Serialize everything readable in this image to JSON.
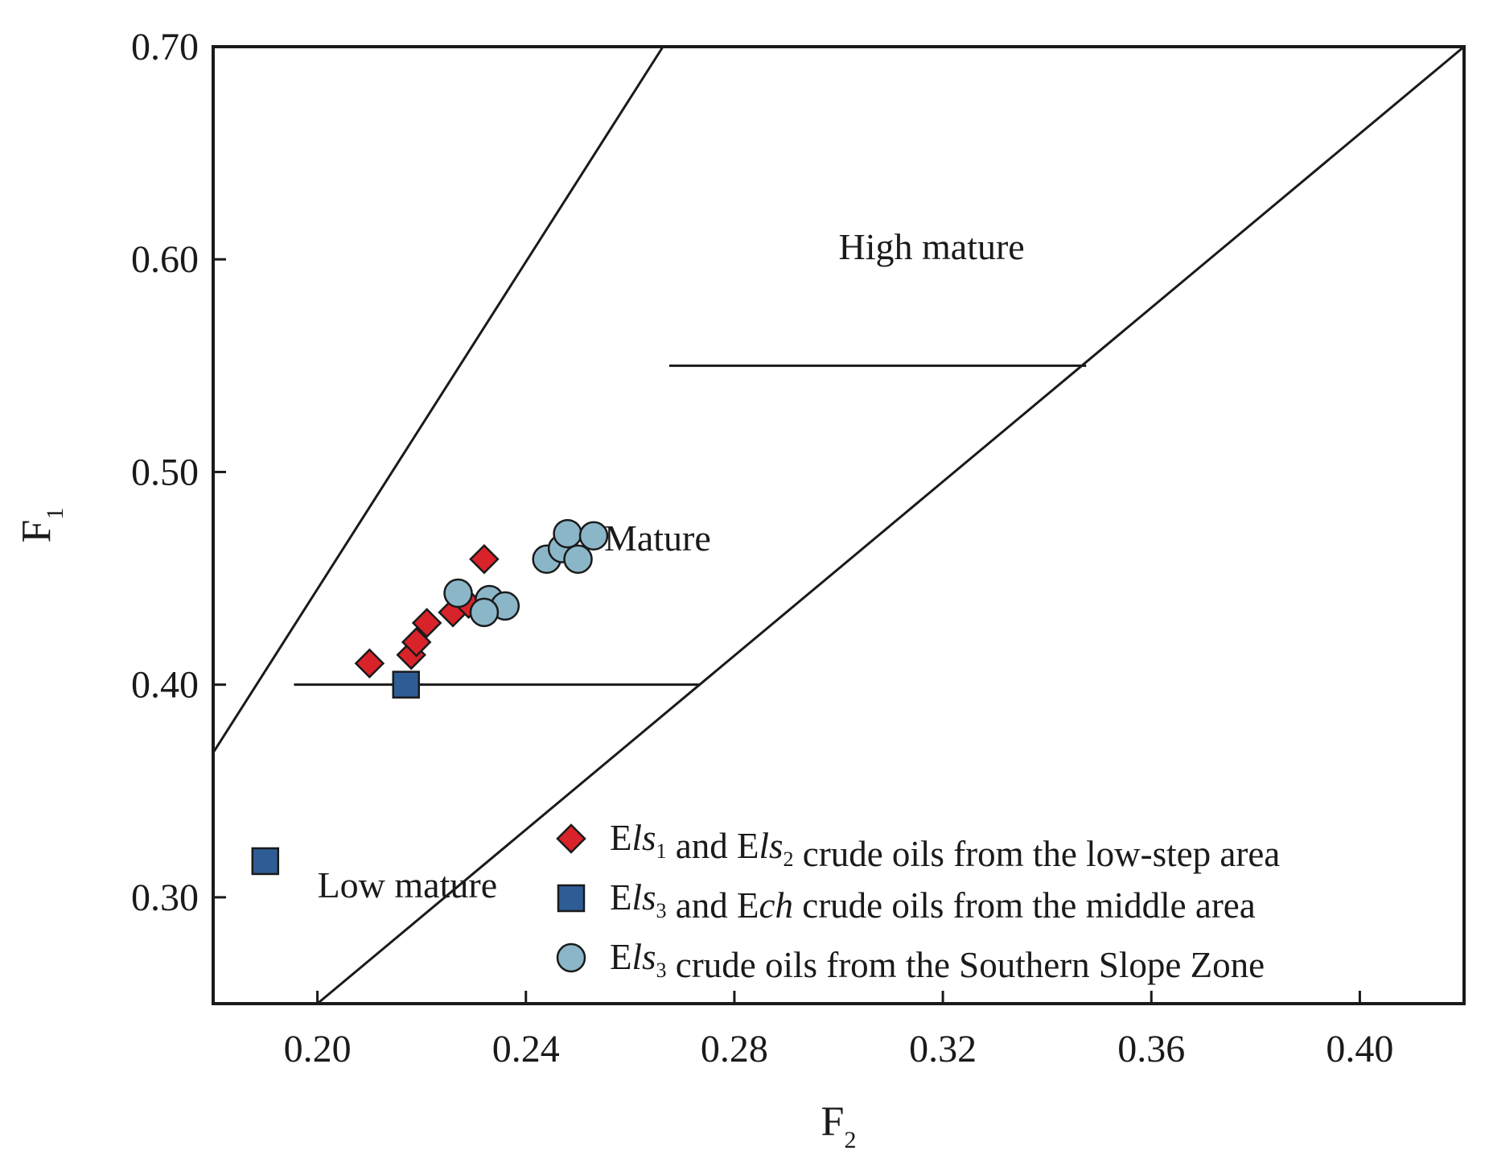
{
  "chart_data": {
    "type": "scatter",
    "xlabel": "F",
    "xlabel_sub": "2",
    "ylabel": "F",
    "ylabel_sub": "1",
    "xlim": [
      0.18,
      0.42
    ],
    "ylim": [
      0.25,
      0.7
    ],
    "xticks": [
      0.2,
      0.24,
      0.28,
      0.32,
      0.36,
      0.4
    ],
    "xtick_labels": [
      "0.20",
      "0.24",
      "0.28",
      "0.32",
      "0.36",
      "0.40"
    ],
    "yticks": [
      0.3,
      0.4,
      0.5,
      0.6,
      0.7
    ],
    "ytick_labels": [
      "0.30",
      "0.40",
      "0.50",
      "0.60",
      "0.70"
    ],
    "grid": false,
    "boundary_lines": [
      {
        "name": "upper-diagonal",
        "x": [
          0.18,
          0.2663
        ],
        "y": [
          0.368,
          0.7
        ]
      },
      {
        "name": "lower-diagonal",
        "x": [
          0.2,
          0.42
        ],
        "y": [
          0.25,
          0.7
        ]
      },
      {
        "name": "low-mature-boundary",
        "x": [
          0.1955,
          0.2735
        ],
        "y": [
          0.4,
          0.4
        ]
      },
      {
        "name": "high-mature-boundary",
        "x": [
          0.2675,
          0.3475
        ],
        "y": [
          0.55,
          0.55
        ]
      }
    ],
    "regions": [
      {
        "label": "High  mature",
        "x": 0.3,
        "y": 0.6
      },
      {
        "label": "Mature",
        "x": 0.255,
        "y": 0.463
      },
      {
        "label": "Low mature",
        "x": 0.2,
        "y": 0.3
      }
    ],
    "series": [
      {
        "name": "Els1 and Els2 crude oils from the low-step area",
        "marker": "diamond",
        "color": "#d8232a",
        "points": [
          [
            0.21,
            0.41
          ],
          [
            0.218,
            0.414
          ],
          [
            0.219,
            0.42
          ],
          [
            0.221,
            0.429
          ],
          [
            0.226,
            0.434
          ],
          [
            0.229,
            0.438
          ],
          [
            0.232,
            0.459
          ]
        ]
      },
      {
        "name": "Els3 and Ech crude oils from the middle area",
        "marker": "square",
        "color": "#2e5d96",
        "points": [
          [
            0.19,
            0.317
          ],
          [
            0.217,
            0.4
          ]
        ]
      },
      {
        "name": "Els3 crude oils from the Southern Slope Zone",
        "marker": "circle",
        "color": "#8ab6c8",
        "points": [
          [
            0.227,
            0.443
          ],
          [
            0.233,
            0.44
          ],
          [
            0.236,
            0.437
          ],
          [
            0.232,
            0.434
          ],
          [
            0.244,
            0.459
          ],
          [
            0.247,
            0.464
          ],
          [
            0.25,
            0.459
          ],
          [
            0.248,
            0.471
          ],
          [
            0.253,
            0.47
          ]
        ]
      }
    ],
    "legend": [
      {
        "marker": "diamond",
        "color": "#d8232a",
        "parts": [
          {
            "t": "E",
            "s": "n"
          },
          {
            "t": "ls",
            "s": "i"
          },
          {
            "t": "1",
            "s": "sub"
          },
          {
            "t": " and E",
            "s": "n"
          },
          {
            "t": "ls",
            "s": "i"
          },
          {
            "t": "2",
            "s": "sub"
          },
          {
            "t": " crude oils from the low-step area",
            "s": "n"
          }
        ]
      },
      {
        "marker": "square",
        "color": "#2e5d96",
        "parts": [
          {
            "t": "E",
            "s": "n"
          },
          {
            "t": "ls",
            "s": "i"
          },
          {
            "t": "3",
            "s": "sub"
          },
          {
            "t": " and E",
            "s": "n"
          },
          {
            "t": "ch",
            "s": "i"
          },
          {
            "t": " crude oils from the middle area",
            "s": "n"
          }
        ]
      },
      {
        "marker": "circle",
        "color": "#8ab6c8",
        "parts": [
          {
            "t": "E",
            "s": "n"
          },
          {
            "t": "ls",
            "s": "i"
          },
          {
            "t": "3",
            "s": "sub"
          },
          {
            "t": " crude oils from the Southern Slope Zone",
            "s": "n"
          }
        ]
      }
    ],
    "legend_position": "bottom-right"
  }
}
